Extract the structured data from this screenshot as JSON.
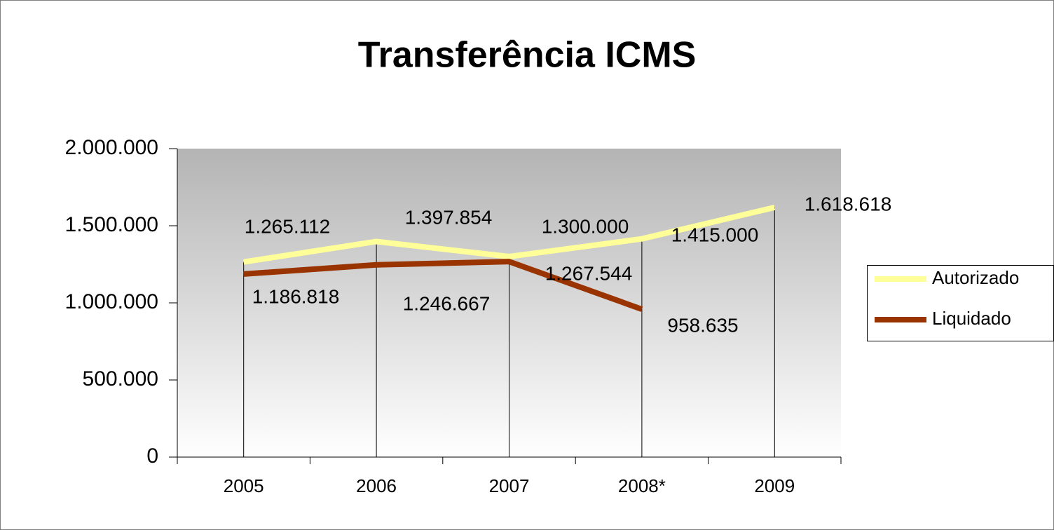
{
  "chart_data": {
    "type": "line",
    "title": "Transferência ICMS",
    "categories": [
      "2005",
      "2006",
      "2007",
      "2008*",
      "2009"
    ],
    "series": [
      {
        "name": "Autorizado",
        "color": "#ffff99",
        "values": [
          1265112,
          1397854,
          1300000,
          1415000,
          1618618
        ],
        "value_labels": [
          "1.265.112",
          "1.397.854",
          "1.300.000",
          "1.415.000",
          "1.618.618"
        ]
      },
      {
        "name": "Liquidado",
        "color": "#993300",
        "values": [
          1186818,
          1246667,
          1267544,
          958635,
          null
        ],
        "value_labels": [
          "1.186.818",
          "1.246.667",
          "1.267.544",
          "958.635",
          null
        ]
      }
    ],
    "ylim": [
      0,
      2000000
    ],
    "yticks": [
      0,
      {
        "value": 500000,
        "label": "500.000"
      },
      {
        "value": 1000000,
        "label": "1.000.000"
      },
      {
        "value": 1500000,
        "label": "1.500.000"
      },
      {
        "value": 2000000,
        "label": "2.000.000"
      }
    ],
    "legend": "right"
  }
}
